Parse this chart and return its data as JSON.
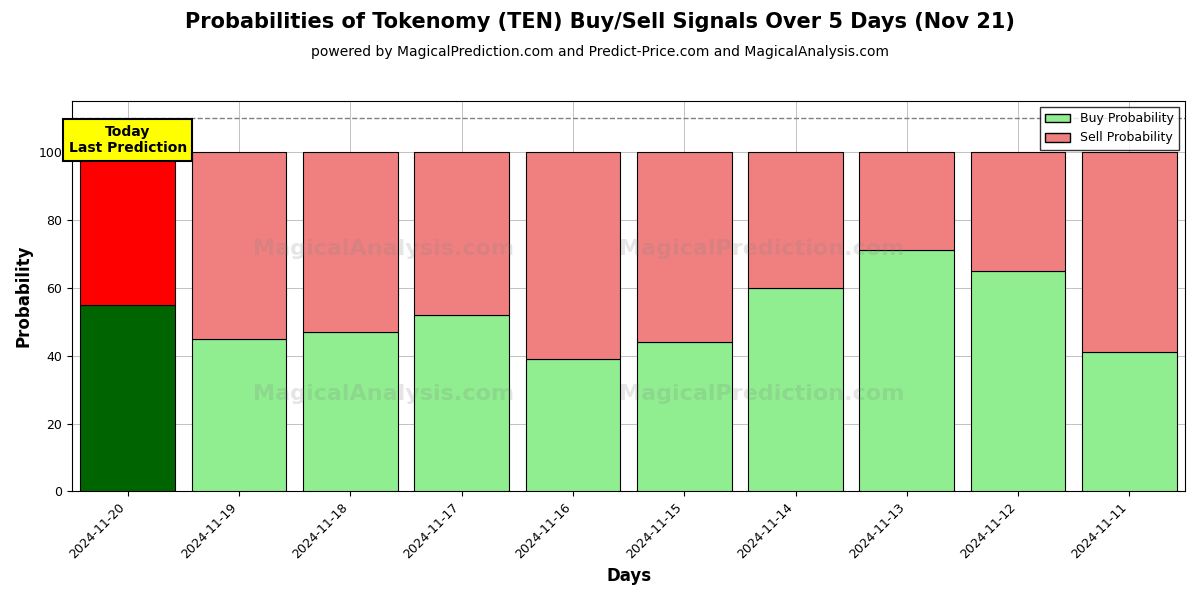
{
  "title": "Probabilities of Tokenomy (TEN) Buy/Sell Signals Over 5 Days (Nov 21)",
  "subtitle": "powered by MagicalPrediction.com and Predict-Price.com and MagicalAnalysis.com",
  "xlabel": "Days",
  "ylabel": "Probability",
  "categories": [
    "2024-11-20",
    "2024-11-19",
    "2024-11-18",
    "2024-11-17",
    "2024-11-16",
    "2024-11-15",
    "2024-11-14",
    "2024-11-13",
    "2024-11-12",
    "2024-11-11"
  ],
  "buy_values": [
    55,
    45,
    47,
    52,
    39,
    44,
    60,
    71,
    65,
    41
  ],
  "sell_values": [
    45,
    55,
    53,
    48,
    61,
    56,
    40,
    29,
    35,
    59
  ],
  "today_buy_color": "#006400",
  "today_sell_color": "#FF0000",
  "normal_buy_color": "#90EE90",
  "normal_sell_color": "#F08080",
  "today_annotation": "Today\nLast Prediction",
  "legend_buy_label": "Buy Probability",
  "legend_sell_label": "Sell Probability",
  "ylim": [
    0,
    115
  ],
  "yticks": [
    0,
    20,
    40,
    60,
    80,
    100
  ],
  "dashed_line_y": 110,
  "background_color": "#ffffff",
  "grid_color": "#aaaaaa",
  "title_fontsize": 15,
  "subtitle_fontsize": 10,
  "axis_label_fontsize": 12,
  "tick_fontsize": 9,
  "annotation_fontsize": 10,
  "bar_width": 0.85
}
